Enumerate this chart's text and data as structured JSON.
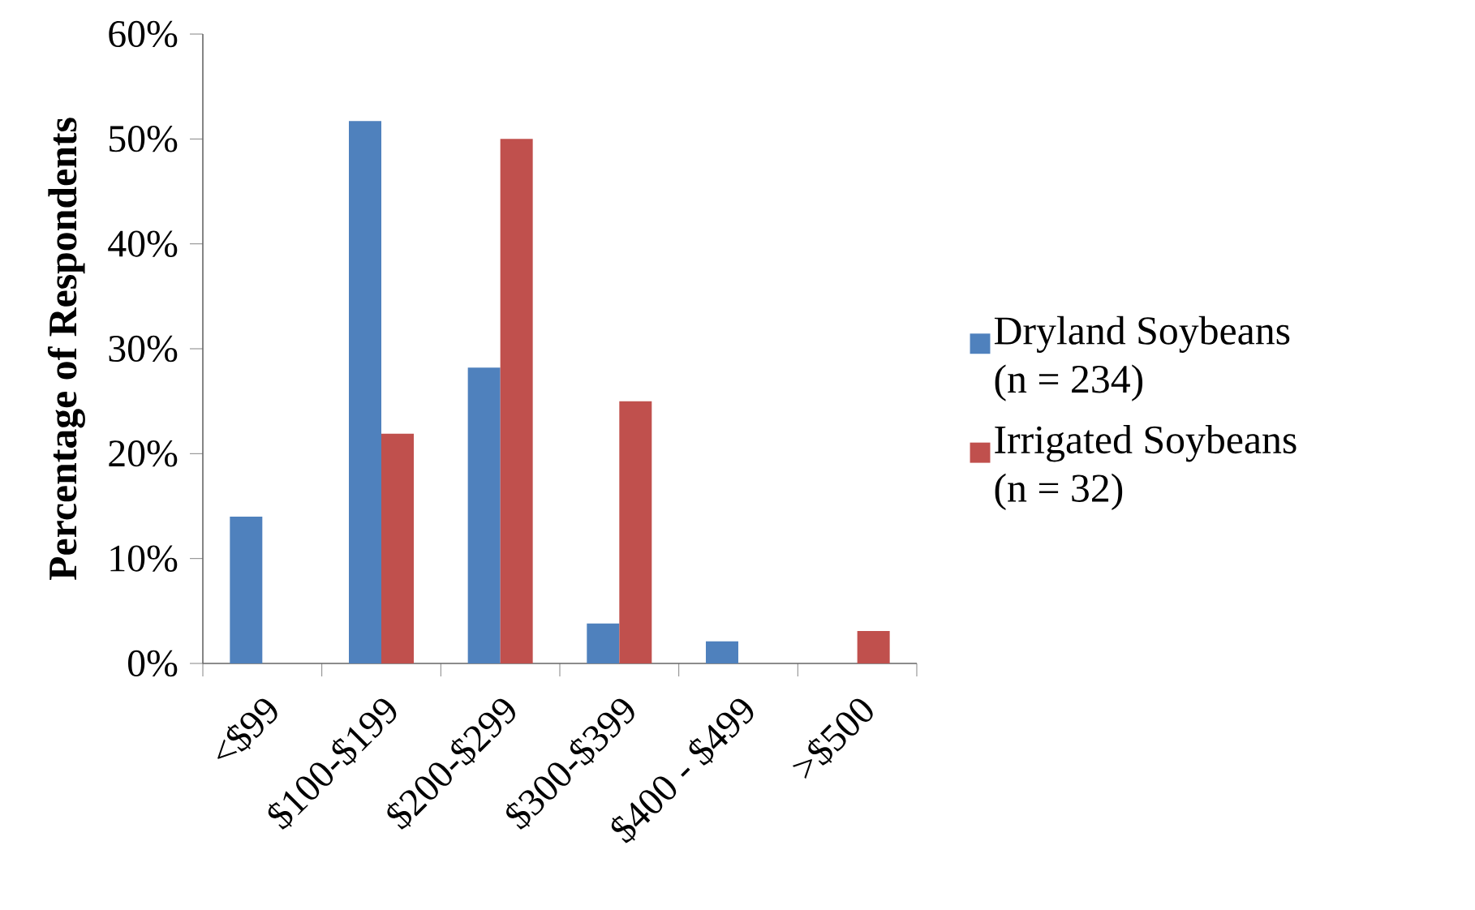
{
  "chart_data": {
    "type": "bar",
    "ylabel": "Percentage of Respondents",
    "categories": [
      "<$99",
      "$100-$199",
      "$200-$299",
      "$300-$399",
      "$400 - $499",
      ">$500"
    ],
    "series": [
      {
        "name": "Dryland Soybeans (n = 234)",
        "color": "#4f81bd",
        "values": [
          14,
          51.7,
          28.2,
          3.8,
          2.1,
          0
        ]
      },
      {
        "name": "Irrigated Soybeans (n = 32)",
        "color": "#c0504d",
        "values": [
          0,
          21.9,
          50,
          25,
          0,
          3.1
        ]
      }
    ],
    "ylim": [
      0,
      60
    ],
    "yticks": [
      {
        "value": 0,
        "label": "0%"
      },
      {
        "value": 10,
        "label": "10%"
      },
      {
        "value": 20,
        "label": "20%"
      },
      {
        "value": 30,
        "label": "30%"
      },
      {
        "value": 40,
        "label": "40%"
      },
      {
        "value": 50,
        "label": "50%"
      },
      {
        "value": 60,
        "label": "60%"
      }
    ],
    "grid": false,
    "legend": "right"
  }
}
